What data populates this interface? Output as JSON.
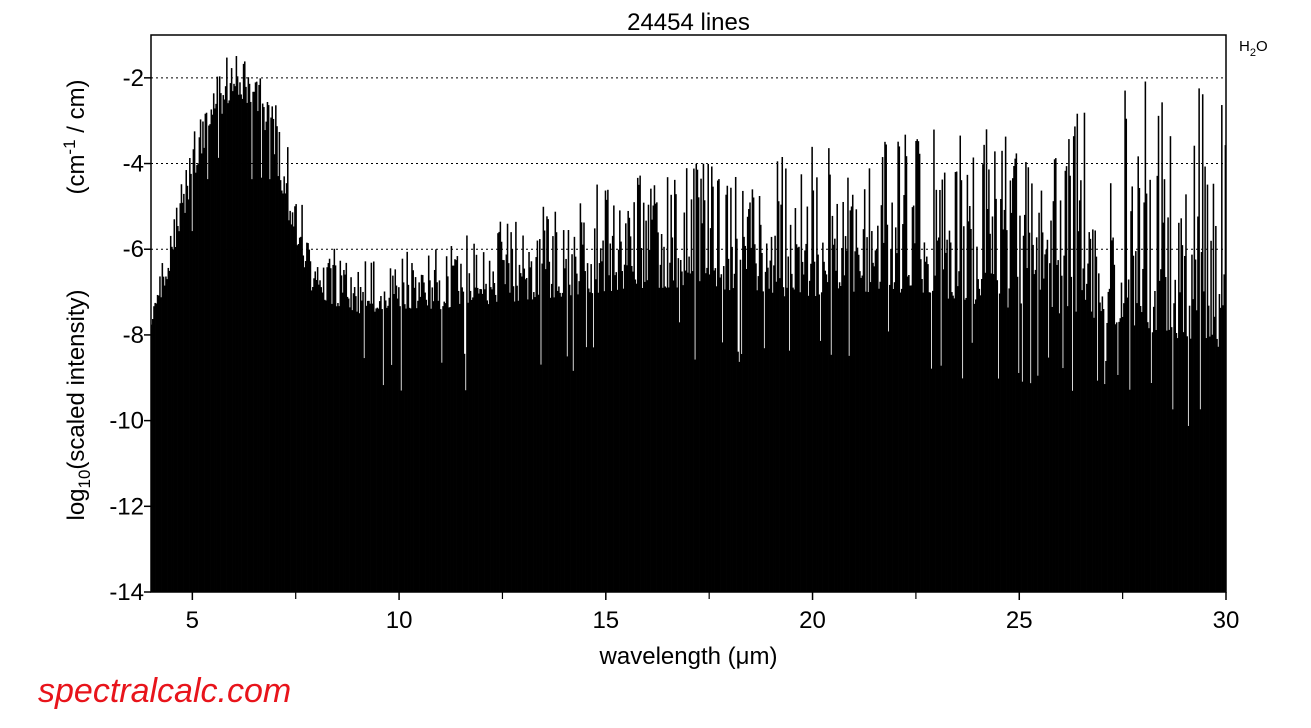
{
  "colors": {
    "fill": "#000000",
    "grid": "#000000",
    "brand": "#e8141b",
    "background": "#ffffff"
  },
  "brand": {
    "text": "spectralcalc.com"
  },
  "chart_data": {
    "type": "area",
    "title": "24454 lines",
    "molecule": {
      "base": "H",
      "subscript": "2",
      "suffix": "O"
    },
    "xlabel": {
      "prefix": "wavelength (",
      "symbol": "μ",
      "suffix": "m)"
    },
    "ylabel": {
      "line1": {
        "base": "log",
        "subscript": "10",
        "text": "(scaled intensity)"
      },
      "line2": {
        "pre": "(cm",
        "sup": "-1",
        "post": " / cm)"
      }
    },
    "xlim": [
      4,
      30
    ],
    "ylim": [
      -14,
      -1
    ],
    "x_ticks": [
      5,
      10,
      15,
      20,
      25,
      30
    ],
    "x_minor_ticks": [
      7.5,
      12.5,
      17.5,
      22.5,
      27.5
    ],
    "y_ticks": [
      -14,
      -12,
      -10,
      -8,
      -6,
      -4,
      -2
    ],
    "grid_y": [
      -2,
      -4,
      -6
    ],
    "grid": "dotted horizontal",
    "envelope_x": [
      4,
      4.3,
      4.6,
      5,
      5.3,
      5.6,
      5.9,
      6.2,
      6.6,
      6.9,
      7.2,
      7.5,
      7.8,
      8.2,
      8.6,
      9,
      9.5,
      10,
      11,
      12,
      13,
      14,
      15,
      16,
      17,
      18,
      19,
      20,
      21,
      22,
      23,
      24,
      25,
      26,
      27,
      28,
      29,
      30
    ],
    "envelope_peak_y": [
      -7.5,
      -6.2,
      -5.0,
      -3.3,
      -2.5,
      -1.8,
      -1.4,
      -1.4,
      -1.6,
      -2.2,
      -3.0,
      -4.3,
      -5.2,
      -5.6,
      -6.1,
      -6.3,
      -6.2,
      -6.0,
      -5.8,
      -5.4,
      -5.2,
      -4.8,
      -4.4,
      -4.2,
      -4.0,
      -3.9,
      -3.5,
      -3.6,
      -3.3,
      -3.3,
      -3.1,
      -3.0,
      -2.7,
      -2.5,
      -2.4,
      -2.0,
      -2.2,
      -2.3
    ],
    "envelope_floor_y": [
      -7.8,
      -7.0,
      -6.0,
      -4.5,
      -3.6,
      -3.0,
      -2.6,
      -2.5,
      -2.8,
      -3.6,
      -4.8,
      -6.0,
      -6.9,
      -7.2,
      -7.4,
      -7.5,
      -7.5,
      -7.4,
      -7.4,
      -7.3,
      -7.2,
      -7.1,
      -7.0,
      -6.9,
      -6.9,
      -7.0,
      -7.1,
      -7.1,
      -7.0,
      -7.0,
      -7.1,
      -7.3,
      -7.4,
      -7.5,
      -7.7,
      -7.9,
      -8.2,
      -8.3
    ],
    "approx_line_count_drawn": 900,
    "note_legend": "none"
  }
}
